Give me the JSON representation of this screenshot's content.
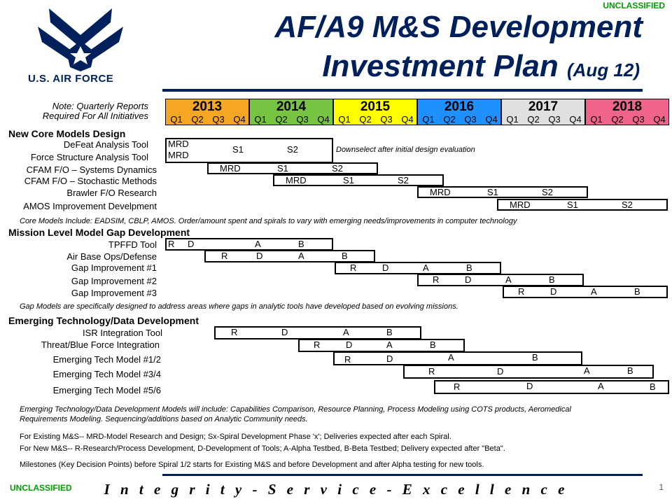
{
  "classification": {
    "top": "UNCLASSIFIED",
    "bottom": "UNCLASSIFIED"
  },
  "logo": {
    "text": "U.S. AIR FORCE"
  },
  "title": {
    "line1": "AF/A9 M&S Development",
    "line2": "Investment Plan",
    "date": "(Aug 12)"
  },
  "note": {
    "line1": "Note: Quarterly Reports",
    "line2": "Required For All Initiatives"
  },
  "timeline": {
    "years": [
      {
        "label": "2013",
        "color": "#f5a623"
      },
      {
        "label": "2014",
        "color": "#76c442"
      },
      {
        "label": "2015",
        "color": "#ffff00"
      },
      {
        "label": "2016",
        "color": "#1e90ff"
      },
      {
        "label": "2017",
        "color": "#e0e0e0"
      },
      {
        "label": "2018",
        "color": "#f0648c"
      }
    ],
    "quarters": [
      "Q1",
      "Q2",
      "Q3",
      "Q4"
    ]
  },
  "sections": [
    {
      "title": "New Core Models Design",
      "rows": [
        "DeFeat Analysis Tool",
        "Force Structure Analysis Tool",
        "CFAM F/O – Systems Dynamics",
        "CFAM F/O – Stochastic Methods",
        "Brawler F/O Research",
        "AMOS Improvement Develpment"
      ],
      "annotation": "Core Models Include: EADSIM, CBLP, AMOS. Order/amount spent and spirals to vary with emerging needs/improvements in computer technology",
      "bar_note": "Downselect after initial design evaluation"
    },
    {
      "title": "Mission Level Model Gap Development",
      "rows": [
        "TPFFD Tool",
        "Air Base Ops/Defense",
        "Gap Improvement #1",
        "Gap Improvement #2",
        "Gap Improvement #3"
      ],
      "annotation": "Gap Models are specifically designed to address areas where gaps in analytic tools have developed based on evolving missions."
    },
    {
      "title": "Emerging Technology/Data Development",
      "rows": [
        "ISR Integration Tool",
        "Threat/Blue Force Integration",
        "Emerging Tech Model #1/2",
        "Emerging Tech Model #3/4",
        "Emerging Tech Model #5/6"
      ],
      "annotation_line1": "Emerging Technology/Data Development Models will include: Capabilities Comparison, Resource Planning, Process Modeling using COTS products, Aeromedical",
      "annotation_line2": "Requirements Modeling. Sequencing/additions based on Analytic Community needs."
    }
  ],
  "milestones": {
    "MRD": "MRD",
    "S1": "S1",
    "S2": "S2",
    "R": "R",
    "D": "D",
    "A": "A",
    "B": "B"
  },
  "legend": {
    "existing": "For Existing M&S-- MRD-Model Research  and Design; Sx-Spiral Development Phase 'x'; Deliveries expected after each Spiral.",
    "new": "For New M&S-- R-Research/Process  Development, D-Development of Tools; A-Alpha Testbed, B-Beta Testbed; Delivery expected after \"Beta\".",
    "milestones": "Milestones (Key Decision Points) before Spiral 1/2 starts for Existing M&S and before Development and after Alpha testing for new tools."
  },
  "footer": {
    "motto": "I n t e g r i t y  -  S e r v i c e  -  E x c e l l e n c e",
    "page": "1"
  }
}
